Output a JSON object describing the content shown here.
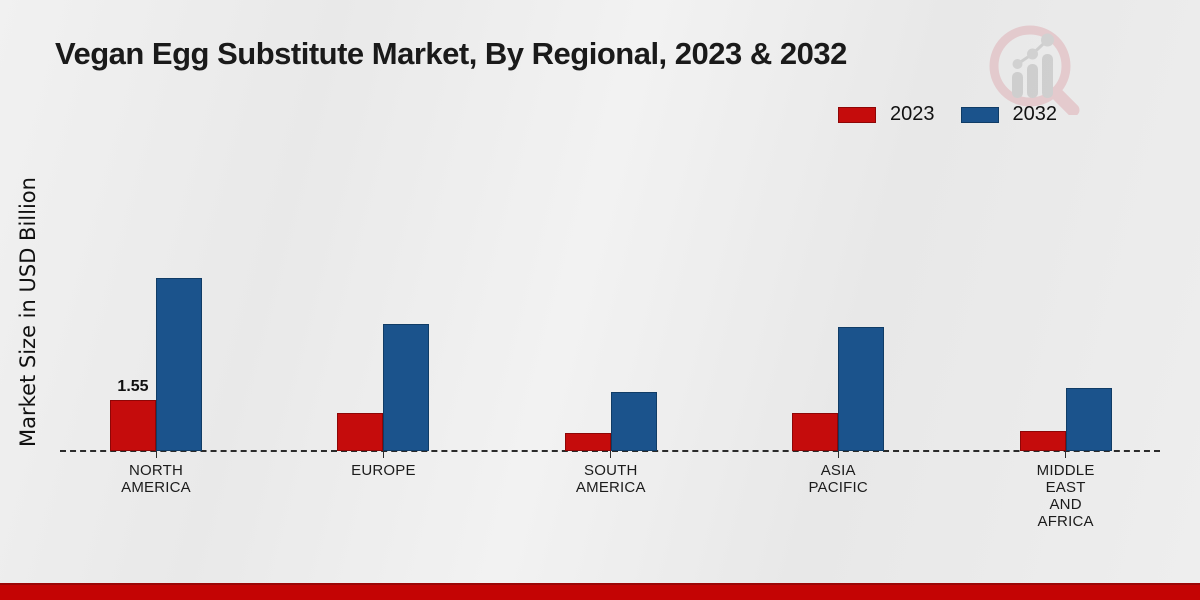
{
  "header": {
    "title": "Vegan Egg Substitute Market, By Regional, 2023 & 2032"
  },
  "chart_data": {
    "type": "bar",
    "title": "Vegan Egg Substitute Market, By Regional, 2023 & 2032",
    "ylabel": "Market Size in USD Billion",
    "xlabel": "",
    "categories": [
      "NORTH AMERICA",
      "EUROPE",
      "SOUTH AMERICA",
      "ASIA PACIFIC",
      "MIDDLE EAST AND AFRICA"
    ],
    "category_label_lines": [
      "NORTH\nAMERICA",
      "EUROPE",
      "SOUTH\nAMERICA",
      "ASIA\nPACIFIC",
      "MIDDLE\nEAST\nAND\nAFRICA"
    ],
    "series": [
      {
        "name": "2023",
        "color": "#c50c0c",
        "border_color": "#8e0606",
        "values": [
          1.55,
          1.15,
          0.55,
          1.15,
          0.6
        ]
      },
      {
        "name": "2032",
        "color": "#1b538c",
        "border_color": "#103c66",
        "values": [
          5.25,
          3.85,
          1.8,
          3.75,
          1.9
        ]
      }
    ],
    "data_labels": [
      {
        "series": "2023",
        "category": "NORTH AMERICA",
        "text": "1.55"
      }
    ],
    "ylim": [
      0,
      6
    ],
    "grid": false,
    "legend_position": "top-right",
    "axis_line_style": "dashed"
  },
  "branding": {
    "logo": "market-research-watermark"
  },
  "footer": {
    "band_color": "#c40404"
  }
}
